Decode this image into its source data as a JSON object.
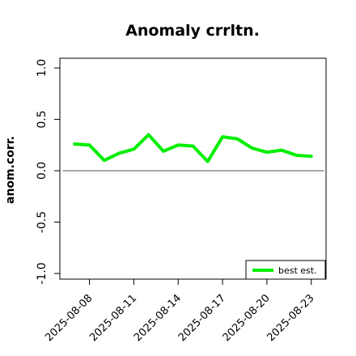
{
  "chart_data": {
    "type": "line",
    "title": "Anomaly crrltn.",
    "xlabel": "",
    "ylabel": "anom.corr.",
    "ylim": [
      -1.0,
      1.0
    ],
    "xlim": [
      "2025-08-06",
      "2025-08-24"
    ],
    "grid": false,
    "legend_position": "bottom-right",
    "y_ticks": [
      "-1.0",
      "-0.5",
      "0.0",
      "0.5",
      "1.0"
    ],
    "x_ticks": [
      "2025-08-08",
      "2025-08-11",
      "2025-08-14",
      "2025-08-17",
      "2025-08-20",
      "2025-08-23"
    ],
    "highlighted_x_tick": "2025-08-14",
    "colors": {
      "series": "#00ee00",
      "highlight_tick": "#228b22",
      "reference": "#555555"
    },
    "reference_line": {
      "y": 0.0
    },
    "x": [
      "2025-08-07",
      "2025-08-08",
      "2025-08-09",
      "2025-08-10",
      "2025-08-11",
      "2025-08-12",
      "2025-08-13",
      "2025-08-14",
      "2025-08-15",
      "2025-08-16",
      "2025-08-17",
      "2025-08-18",
      "2025-08-19",
      "2025-08-20",
      "2025-08-21",
      "2025-08-22",
      "2025-08-23"
    ],
    "series": [
      {
        "name": "best est.",
        "values": [
          0.26,
          0.25,
          0.1,
          0.17,
          0.21,
          0.35,
          0.19,
          0.25,
          0.24,
          0.09,
          0.33,
          0.31,
          0.22,
          0.18,
          0.2,
          0.15,
          0.14
        ]
      }
    ]
  }
}
